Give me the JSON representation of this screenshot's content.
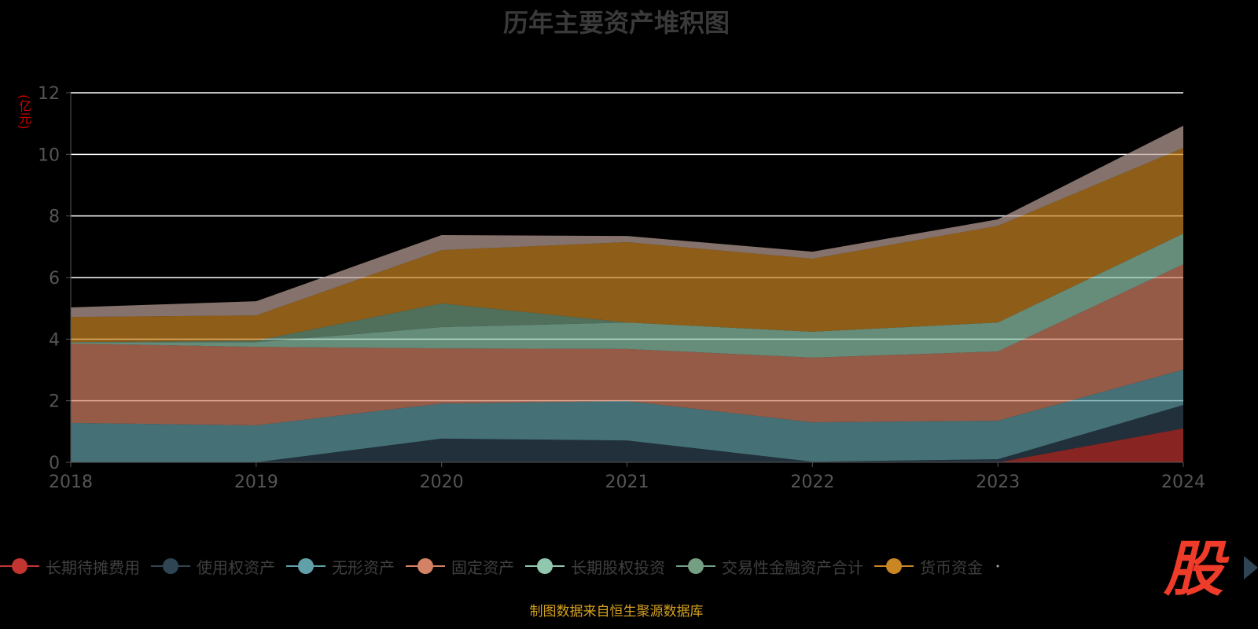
{
  "chart_data": {
    "type": "area",
    "stacked": true,
    "title": "历年主要资产堆积图",
    "ylabel": "(亿元)",
    "xlabel": "",
    "x": [
      "2018",
      "2019",
      "2020",
      "2021",
      "2022",
      "2023",
      "2024"
    ],
    "ylim": [
      0,
      12
    ],
    "yticks": [
      "0",
      "2",
      "4",
      "6",
      "8",
      "10",
      "12"
    ],
    "grid": true,
    "legend_position": "bottom",
    "series": [
      {
        "name": "长期待摊费用",
        "color": "#c23531",
        "values": [
          0,
          0,
          0,
          0,
          0,
          0,
          1.1
        ]
      },
      {
        "name": "使用权资产",
        "color": "#2f4554",
        "values": [
          0,
          0,
          0.77,
          0.71,
          0.02,
          0.1,
          0.76
        ]
      },
      {
        "name": "无形资产",
        "color": "#61a0a8",
        "values": [
          1.28,
          1.2,
          1.14,
          1.28,
          1.28,
          1.25,
          1.15
        ]
      },
      {
        "name": "固定资产",
        "color": "#d48265",
        "values": [
          2.58,
          2.55,
          1.79,
          1.69,
          2.1,
          2.25,
          3.42
        ]
      },
      {
        "name": "长期股权投资",
        "color": "#91c7ae",
        "values": [
          0.04,
          0.15,
          0.69,
          0.86,
          0.84,
          0.94,
          1.0
        ]
      },
      {
        "name": "交易性金融资产合计",
        "color": "#749f83",
        "values": [
          0,
          0.05,
          0.77,
          0,
          0,
          0,
          0
        ]
      },
      {
        "name": "货币资金",
        "color": "#ca8622",
        "values": [
          0.82,
          0.82,
          1.73,
          2.61,
          2.37,
          3.14,
          2.78
        ]
      },
      {
        "name": "",
        "color": "#bda29a",
        "values": [
          0.31,
          0.46,
          0.49,
          0.2,
          0.23,
          0.21,
          0.72
        ]
      }
    ]
  },
  "logo_text": "股",
  "footer": "制图数据来自恒生聚源数据库"
}
